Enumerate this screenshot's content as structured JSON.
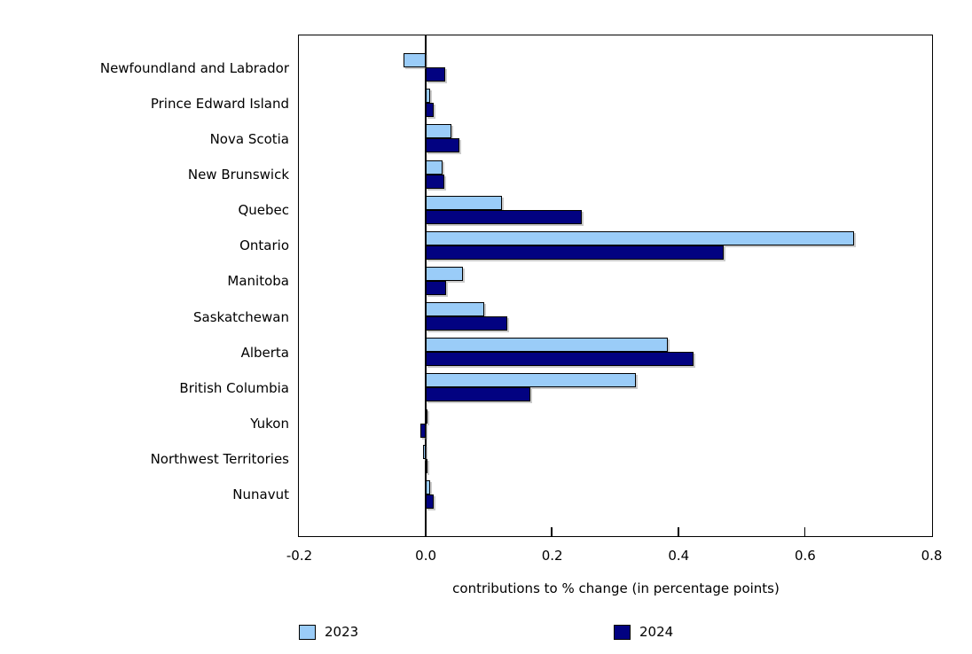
{
  "chart_data": {
    "type": "bar",
    "orientation": "horizontal",
    "title": "",
    "xlabel": "contributions to % change (in percentage points)",
    "xlim": [
      -0.2,
      0.8
    ],
    "xticks": [
      -0.2,
      0.0,
      0.2,
      0.4,
      0.6,
      0.8
    ],
    "xtick_labels": [
      "-0.2",
      "0.0",
      "0.2",
      "0.4",
      "0.6",
      "0.8"
    ],
    "grid": false,
    "legend_position": "bottom",
    "categories": [
      "Newfoundland and Labrador",
      "Prince Edward Island",
      "Nova Scotia",
      "New Brunswick",
      "Quebec",
      "Ontario",
      "Manitoba",
      "Saskatchewan",
      "Alberta",
      "British Columbia",
      "Yukon",
      "Northwest Territories",
      "Nunavut"
    ],
    "series": [
      {
        "name": "2023",
        "color": "#9accf8",
        "values": [
          -0.035,
          0.007,
          0.041,
          0.027,
          0.121,
          0.678,
          0.059,
          0.093,
          0.384,
          0.333,
          0.003,
          -0.004,
          0.007
        ]
      },
      {
        "name": "2024",
        "color": "#020281",
        "values": [
          0.031,
          0.013,
          0.054,
          0.03,
          0.248,
          0.472,
          0.033,
          0.13,
          0.424,
          0.166,
          -0.008,
          0.002,
          0.013
        ]
      }
    ]
  }
}
